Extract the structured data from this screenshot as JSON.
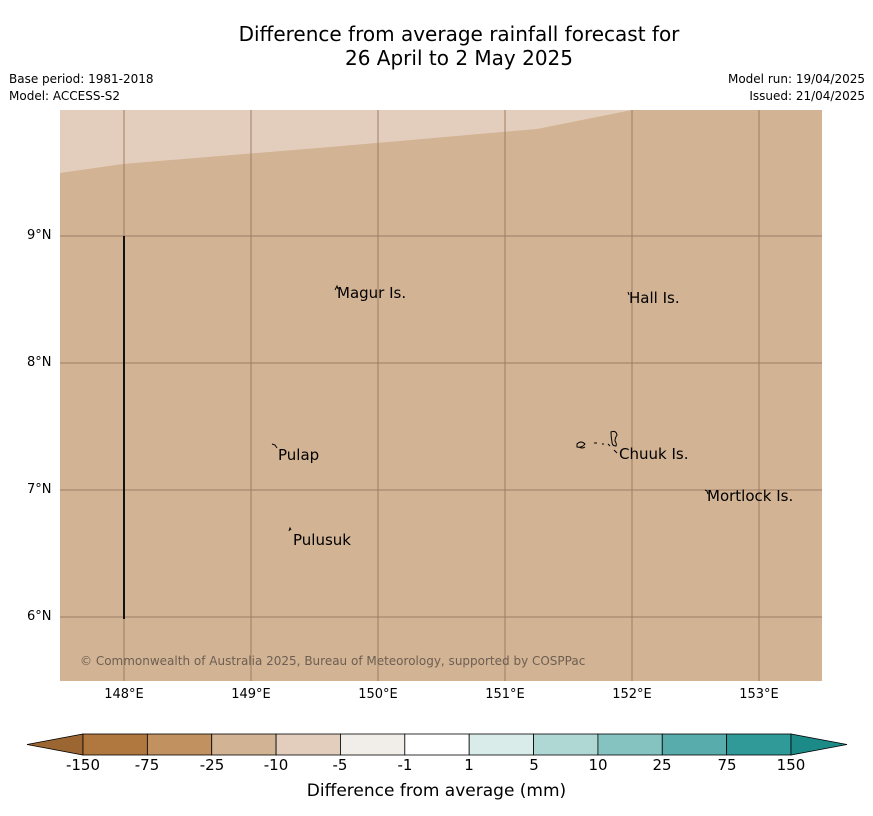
{
  "title_line1": "Difference from average rainfall forecast for",
  "title_line2": "26 April to 2 May 2025",
  "base_period": "Base period: 1981-2018",
  "model": "Model: ACCESS-S2",
  "model_run": "Model run: 19/04/2025",
  "issued": "Issued: 21/04/2025",
  "map": {
    "latitudes": [
      "9°N",
      "8°N",
      "7°N",
      "6°N"
    ],
    "longitudes": [
      "148°E",
      "149°E",
      "150°E",
      "151°E",
      "152°E",
      "153°E"
    ],
    "places": [
      "Magur Is.",
      "Hall Is.",
      "Pulap",
      "Chuuk Is.",
      "Mortlock Is.",
      "Pulusuk"
    ],
    "copyright": "© Commonwealth of Australia 2025, Bureau of Meteorology, supported by COSPPac",
    "colors": {
      "fill_main": "#d2b394",
      "fill_light": "#e3cebd",
      "grid": "#9c7c63"
    }
  },
  "colorbar": {
    "ticks": [
      "-150",
      "-75",
      "-25",
      "-10",
      "-5",
      "-1",
      "1",
      "5",
      "10",
      "25",
      "75",
      "150"
    ],
    "colors": [
      "#9c6633",
      "#b0773e",
      "#c1915f",
      "#d2b394",
      "#e3cebd",
      "#f1eeea",
      "#ffffff",
      "#d9ecea",
      "#afd7d4",
      "#84c3c0",
      "#58acab",
      "#2f9a98",
      "#1c8a87"
    ],
    "label": "Difference from average (mm)"
  }
}
